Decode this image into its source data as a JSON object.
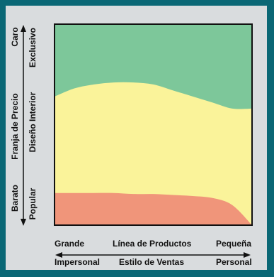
{
  "chart_data": {
    "type": "area",
    "title": "",
    "y_axis": {
      "label": "Franja de Precio",
      "end_top": "Caro",
      "end_bottom": "Barato",
      "segments": [
        "Exclusivo",
        "Diseño Interior",
        "Popular"
      ]
    },
    "x_axis_1": {
      "label": "Línea de Productos",
      "left": "Grande",
      "right": "Pequeña"
    },
    "x_axis_2": {
      "label": "Estilo de Ventas",
      "left": "Impersonal",
      "right": "Personal"
    },
    "regions": [
      {
        "name": "Exclusivo",
        "color": "#7dc79a"
      },
      {
        "name": "Diseño Interior",
        "color": "#faf39a"
      },
      {
        "name": "Popular",
        "color": "#f0957a"
      }
    ],
    "x": [
      0,
      0.1,
      0.2,
      0.3,
      0.4,
      0.5,
      0.6,
      0.7,
      0.8,
      0.9,
      1.0
    ],
    "boundary_upper": [
      0.64,
      0.68,
      0.7,
      0.71,
      0.71,
      0.7,
      0.67,
      0.64,
      0.61,
      0.58,
      0.58
    ],
    "boundary_lower": [
      0.16,
      0.16,
      0.16,
      0.16,
      0.155,
      0.155,
      0.15,
      0.145,
      0.135,
      0.1,
      0.0
    ],
    "xlim": [
      0,
      1
    ],
    "ylim": [
      0,
      1
    ],
    "grid": false,
    "legend": "none"
  },
  "colors": {
    "background": "#0a6775",
    "panel": "#d9dcde",
    "frame": "#111111"
  }
}
